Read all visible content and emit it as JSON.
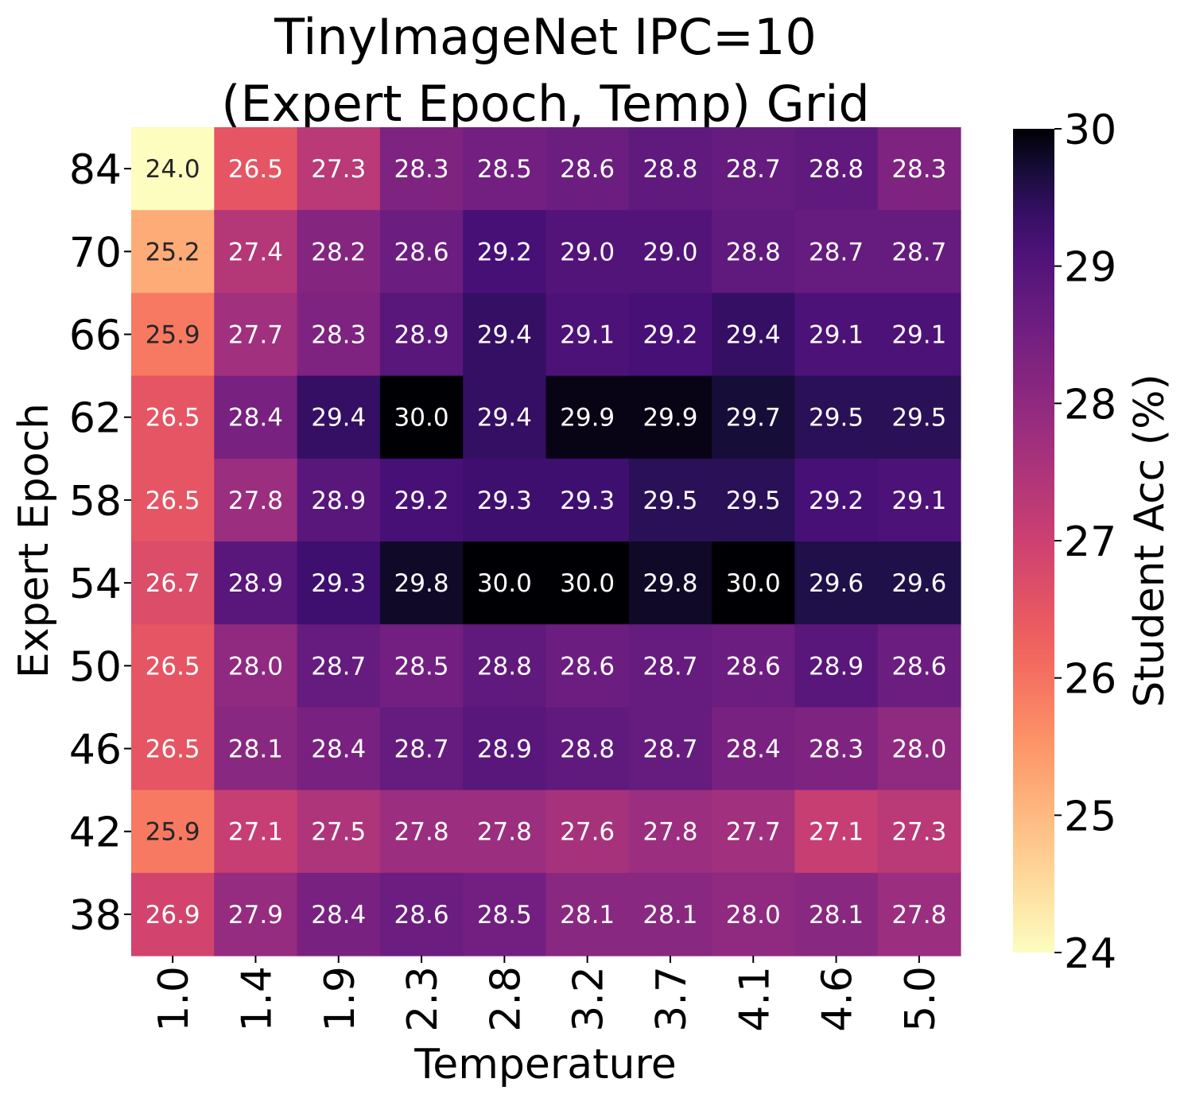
{
  "chart_data": {
    "type": "heatmap",
    "title": "TinyImageNet IPC=10\n(Expert Epoch, Temp) Grid",
    "xlabel": "Temperature",
    "ylabel": "Expert Epoch",
    "x_categories": [
      "1.0",
      "1.4",
      "1.9",
      "2.3",
      "2.8",
      "3.2",
      "3.7",
      "4.1",
      "4.6",
      "5.0"
    ],
    "y_categories": [
      "84",
      "70",
      "66",
      "62",
      "58",
      "54",
      "50",
      "46",
      "42",
      "38"
    ],
    "values": [
      [
        24.0,
        26.5,
        27.3,
        28.3,
        28.5,
        28.6,
        28.8,
        28.7,
        28.8,
        28.3
      ],
      [
        25.2,
        27.4,
        28.2,
        28.6,
        29.2,
        29.0,
        29.0,
        28.8,
        28.7,
        28.7
      ],
      [
        25.9,
        27.7,
        28.3,
        28.9,
        29.4,
        29.1,
        29.2,
        29.4,
        29.1,
        29.1
      ],
      [
        26.5,
        28.4,
        29.4,
        30.0,
        29.4,
        29.9,
        29.9,
        29.7,
        29.5,
        29.5
      ],
      [
        26.5,
        27.8,
        28.9,
        29.2,
        29.3,
        29.3,
        29.5,
        29.5,
        29.2,
        29.1
      ],
      [
        26.7,
        28.9,
        29.3,
        29.8,
        30.0,
        30.0,
        29.8,
        30.0,
        29.6,
        29.6
      ],
      [
        26.5,
        28.0,
        28.7,
        28.5,
        28.8,
        28.6,
        28.7,
        28.6,
        28.9,
        28.6
      ],
      [
        26.5,
        28.1,
        28.4,
        28.7,
        28.9,
        28.8,
        28.7,
        28.4,
        28.3,
        28.0
      ],
      [
        25.9,
        27.1,
        27.5,
        27.8,
        27.8,
        27.6,
        27.8,
        27.7,
        27.1,
        27.3
      ],
      [
        26.9,
        27.9,
        28.4,
        28.6,
        28.5,
        28.1,
        28.1,
        28.0,
        28.1,
        27.8
      ]
    ],
    "value_format": "0.1f",
    "colormap": "magma_r",
    "colorbar": {
      "label": "Student Acc (%)",
      "range": [
        24,
        30
      ],
      "ticks": [
        24,
        25,
        26,
        27,
        28,
        29,
        30
      ]
    },
    "annotations": true
  }
}
